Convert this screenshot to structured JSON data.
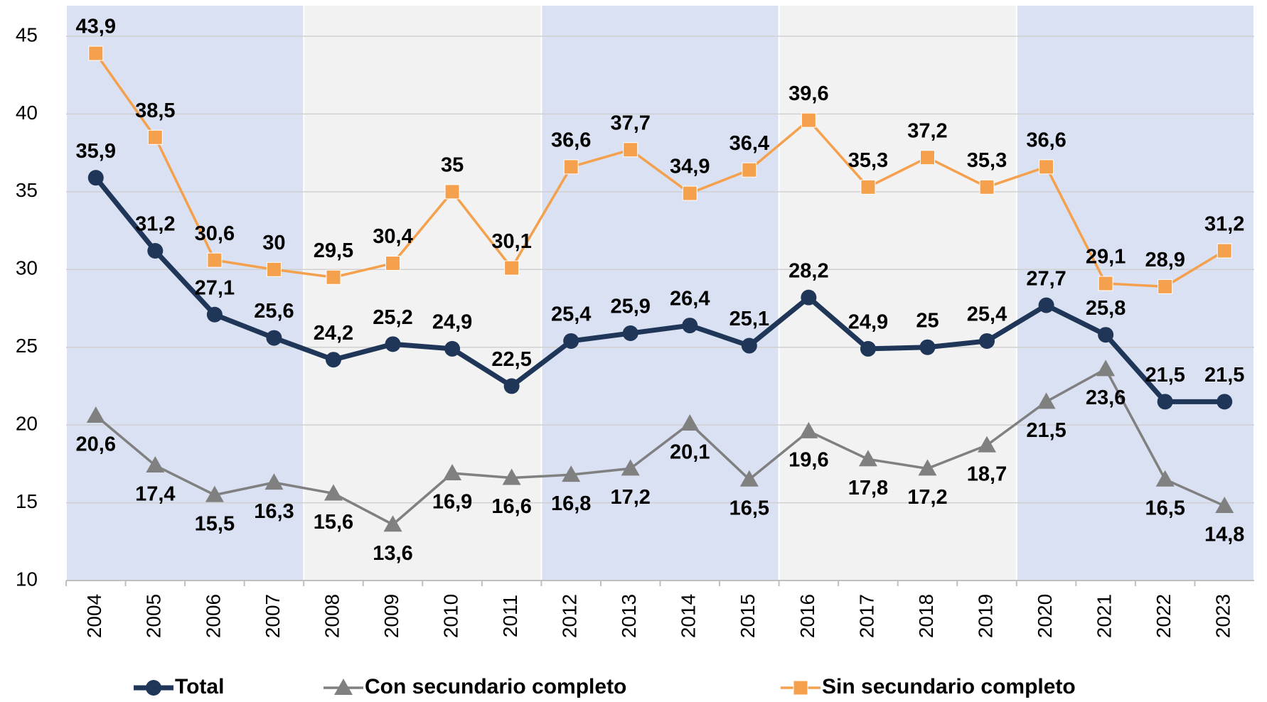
{
  "chart_data": {
    "type": "line",
    "categories": [
      "2004",
      "2005",
      "2006",
      "2007",
      "2008",
      "2009",
      "2010",
      "2011",
      "2012",
      "2013",
      "2014",
      "2015",
      "2016",
      "2017",
      "2018",
      "2019",
      "2020",
      "2021",
      "2022",
      "2023"
    ],
    "ylim": [
      10,
      45
    ],
    "yticks": [
      10,
      15,
      20,
      25,
      30,
      35,
      40,
      45
    ],
    "grid": true,
    "series": [
      {
        "name": "Total",
        "color": "#1f3658",
        "marker": "circle",
        "values": [
          35.9,
          31.2,
          27.1,
          25.6,
          24.2,
          25.2,
          24.9,
          22.5,
          25.4,
          25.9,
          26.4,
          25.1,
          28.2,
          24.9,
          25,
          25.4,
          27.7,
          25.8,
          21.5,
          21.5
        ],
        "value_labels": [
          "35,9",
          "31,2",
          "27,1",
          "25,6",
          "24,2",
          "25,2",
          "24,9",
          "22,5",
          "25,4",
          "25,9",
          "26,4",
          "25,1",
          "28,2",
          "24,9",
          "25",
          "25,4",
          "27,7",
          "25,8",
          "21,5",
          "21,5"
        ]
      },
      {
        "name": "Con secundario completo",
        "color": "#808080",
        "marker": "triangle",
        "values": [
          20.6,
          17.4,
          15.5,
          16.3,
          15.6,
          13.6,
          16.9,
          16.6,
          16.8,
          17.2,
          20.1,
          16.5,
          19.6,
          17.8,
          17.2,
          18.7,
          21.5,
          23.6,
          16.5,
          14.8
        ],
        "value_labels": [
          "20,6",
          "17,4",
          "15,5",
          "16,3",
          "15,6",
          "13,6",
          "16,9",
          "16,6",
          "16,8",
          "17,2",
          "20,1",
          "16,5",
          "19,6",
          "17,8",
          "17,2",
          "18,7",
          "21,5",
          "23,6",
          "16,5",
          "14,8"
        ]
      },
      {
        "name": "Sin secundario completo",
        "color": "#f5a04c",
        "marker": "square",
        "values": [
          43.9,
          38.5,
          30.6,
          30,
          29.5,
          30.4,
          35,
          30.1,
          36.6,
          37.7,
          34.9,
          36.4,
          39.6,
          35.3,
          37.2,
          35.3,
          36.6,
          29.1,
          28.9,
          31.2
        ],
        "value_labels": [
          "43,9",
          "38,5",
          "30,6",
          "30",
          "29,5",
          "30,4",
          "35",
          "30,1",
          "36,6",
          "37,7",
          "34,9",
          "36,4",
          "39,6",
          "35,3",
          "37,2",
          "35,3",
          "36,6",
          "29,1",
          "28,9",
          "31,2"
        ]
      }
    ]
  }
}
